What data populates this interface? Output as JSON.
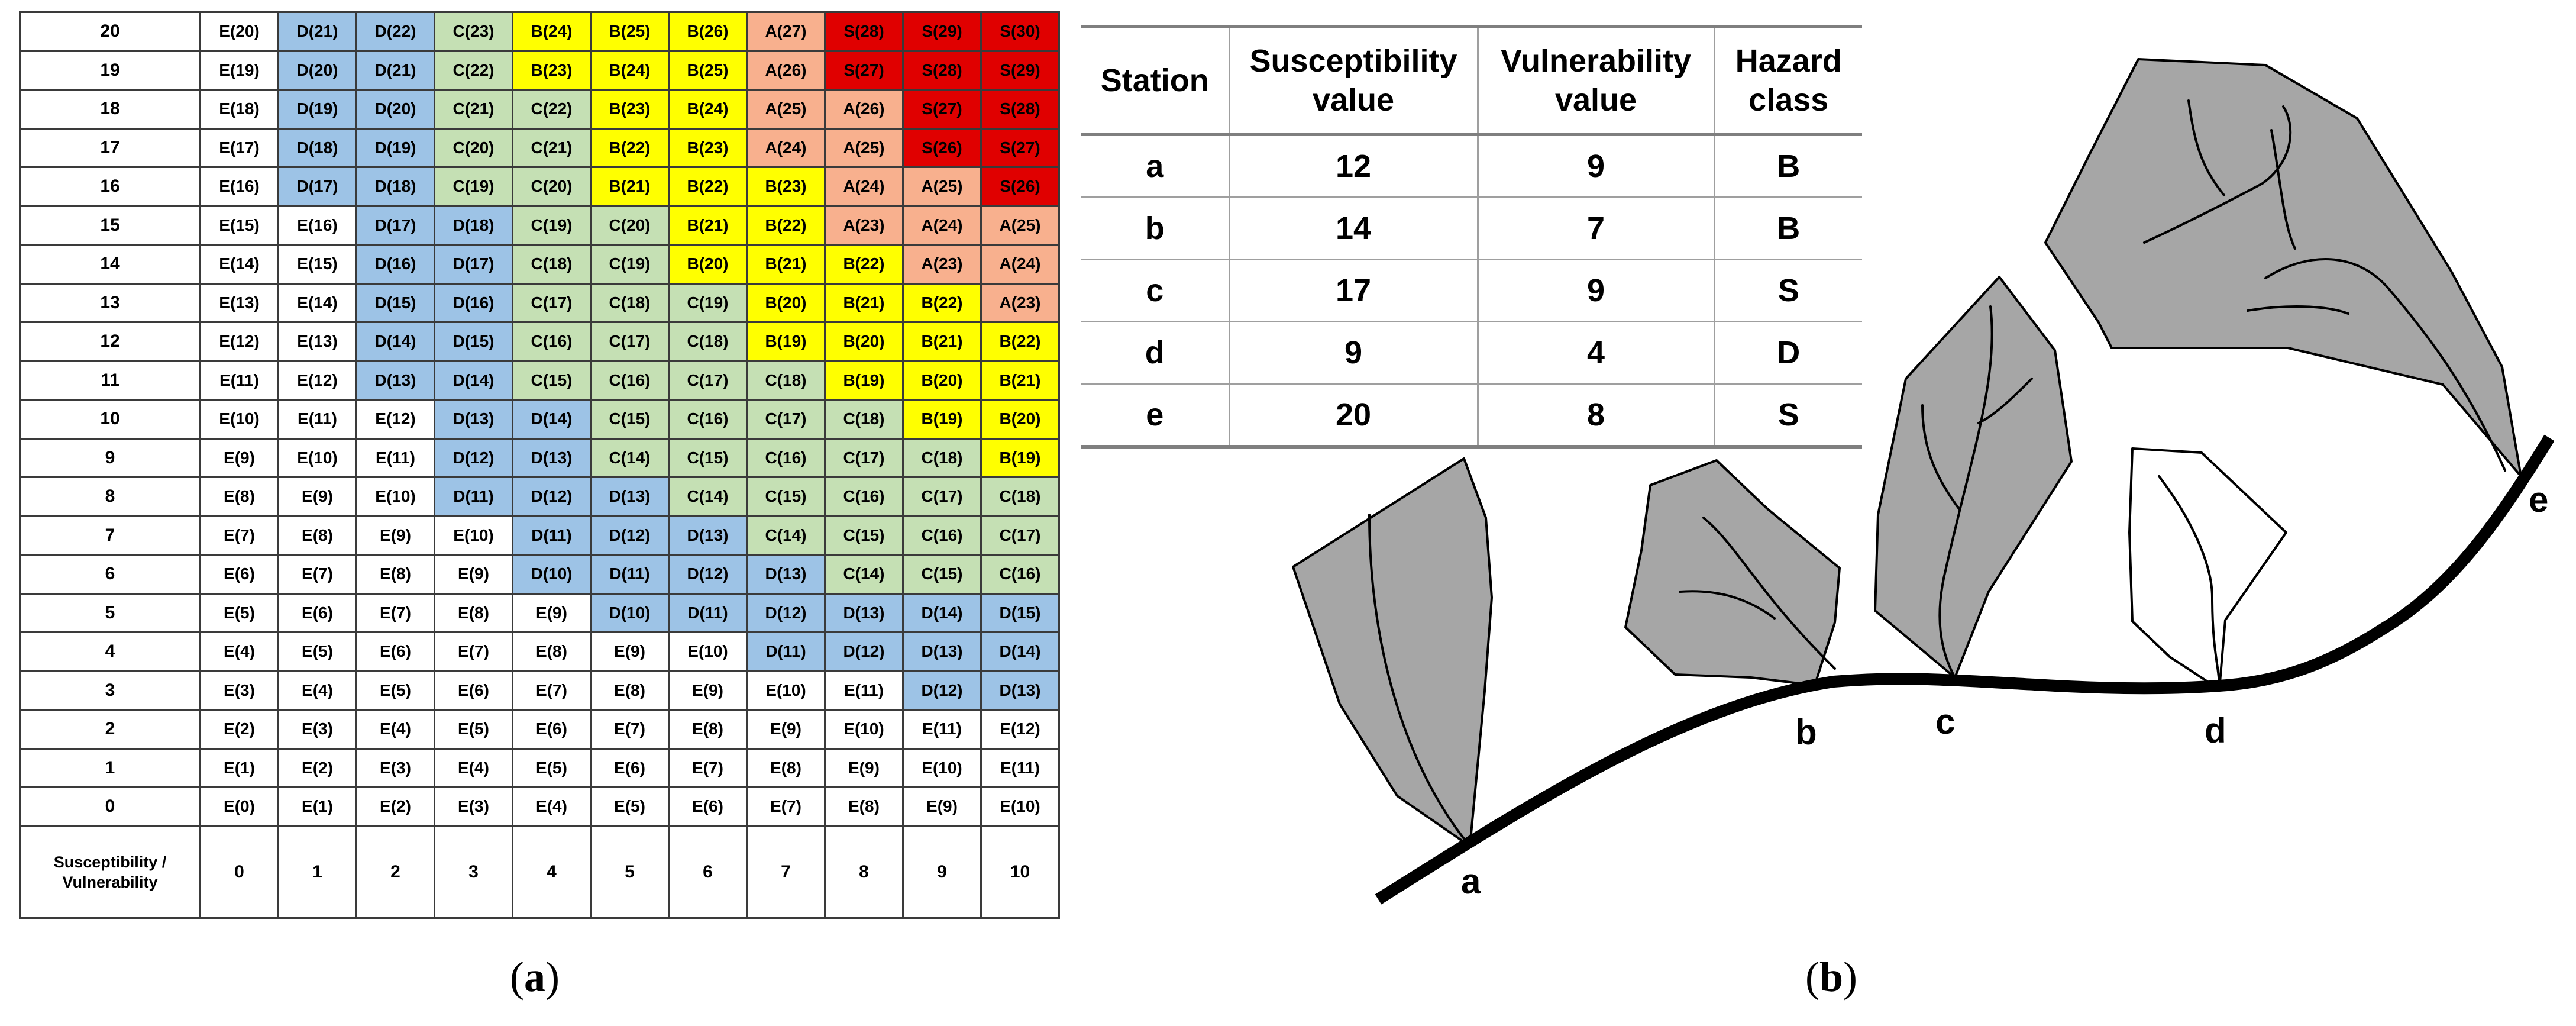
{
  "panel_a": {
    "caption_letter": "a",
    "axis_label": "Susceptibility / Vulnerability",
    "column_headers": [
      "0",
      "1",
      "2",
      "3",
      "4",
      "5",
      "6",
      "7",
      "8",
      "9",
      "10"
    ],
    "rows": [
      {
        "label": "20",
        "cells": [
          "E(20)",
          "D(21)",
          "D(22)",
          "C(23)",
          "B(24)",
          "B(25)",
          "B(26)",
          "A(27)",
          "S(28)",
          "S(29)",
          "S(30)"
        ]
      },
      {
        "label": "19",
        "cells": [
          "E(19)",
          "D(20)",
          "D(21)",
          "C(22)",
          "B(23)",
          "B(24)",
          "B(25)",
          "A(26)",
          "S(27)",
          "S(28)",
          "S(29)"
        ]
      },
      {
        "label": "18",
        "cells": [
          "E(18)",
          "D(19)",
          "D(20)",
          "C(21)",
          "C(22)",
          "B(23)",
          "B(24)",
          "A(25)",
          "A(26)",
          "S(27)",
          "S(28)"
        ]
      },
      {
        "label": "17",
        "cells": [
          "E(17)",
          "D(18)",
          "D(19)",
          "C(20)",
          "C(21)",
          "B(22)",
          "B(23)",
          "A(24)",
          "A(25)",
          "S(26)",
          "S(27)"
        ]
      },
      {
        "label": "16",
        "cells": [
          "E(16)",
          "D(17)",
          "D(18)",
          "C(19)",
          "C(20)",
          "B(21)",
          "B(22)",
          "B(23)",
          "A(24)",
          "A(25)",
          "S(26)"
        ]
      },
      {
        "label": "15",
        "cells": [
          "E(15)",
          "E(16)",
          "D(17)",
          "D(18)",
          "C(19)",
          "C(20)",
          "B(21)",
          "B(22)",
          "A(23)",
          "A(24)",
          "A(25)"
        ]
      },
      {
        "label": "14",
        "cells": [
          "E(14)",
          "E(15)",
          "D(16)",
          "D(17)",
          "C(18)",
          "C(19)",
          "B(20)",
          "B(21)",
          "B(22)",
          "A(23)",
          "A(24)"
        ]
      },
      {
        "label": "13",
        "cells": [
          "E(13)",
          "E(14)",
          "D(15)",
          "D(16)",
          "C(17)",
          "C(18)",
          "C(19)",
          "B(20)",
          "B(21)",
          "B(22)",
          "A(23)"
        ]
      },
      {
        "label": "12",
        "cells": [
          "E(12)",
          "E(13)",
          "D(14)",
          "D(15)",
          "C(16)",
          "C(17)",
          "C(18)",
          "B(19)",
          "B(20)",
          "B(21)",
          "B(22)"
        ]
      },
      {
        "label": "11",
        "cells": [
          "E(11)",
          "E(12)",
          "D(13)",
          "D(14)",
          "C(15)",
          "C(16)",
          "C(17)",
          "C(18)",
          "B(19)",
          "B(20)",
          "B(21)"
        ]
      },
      {
        "label": "10",
        "cells": [
          "E(10)",
          "E(11)",
          "E(12)",
          "D(13)",
          "D(14)",
          "C(15)",
          "C(16)",
          "C(17)",
          "C(18)",
          "B(19)",
          "B(20)"
        ]
      },
      {
        "label": "9",
        "cells": [
          "E(9)",
          "E(10)",
          "E(11)",
          "D(12)",
          "D(13)",
          "C(14)",
          "C(15)",
          "C(16)",
          "C(17)",
          "C(18)",
          "B(19)"
        ]
      },
      {
        "label": "8",
        "cells": [
          "E(8)",
          "E(9)",
          "E(10)",
          "D(11)",
          "D(12)",
          "D(13)",
          "C(14)",
          "C(15)",
          "C(16)",
          "C(17)",
          "C(18)"
        ]
      },
      {
        "label": "7",
        "cells": [
          "E(7)",
          "E(8)",
          "E(9)",
          "E(10)",
          "D(11)",
          "D(12)",
          "D(13)",
          "C(14)",
          "C(15)",
          "C(16)",
          "C(17)"
        ]
      },
      {
        "label": "6",
        "cells": [
          "E(6)",
          "E(7)",
          "E(8)",
          "E(9)",
          "D(10)",
          "D(11)",
          "D(12)",
          "D(13)",
          "C(14)",
          "C(15)",
          "C(16)"
        ]
      },
      {
        "label": "5",
        "cells": [
          "E(5)",
          "E(6)",
          "E(7)",
          "E(8)",
          "E(9)",
          "D(10)",
          "D(11)",
          "D(12)",
          "D(13)",
          "D(14)",
          "D(15)"
        ]
      },
      {
        "label": "4",
        "cells": [
          "E(4)",
          "E(5)",
          "E(6)",
          "E(7)",
          "E(8)",
          "E(9)",
          "E(10)",
          "D(11)",
          "D(12)",
          "D(13)",
          "D(14)"
        ]
      },
      {
        "label": "3",
        "cells": [
          "E(3)",
          "E(4)",
          "E(5)",
          "E(6)",
          "E(7)",
          "E(8)",
          "E(9)",
          "E(10)",
          "E(11)",
          "D(12)",
          "D(13)"
        ]
      },
      {
        "label": "2",
        "cells": [
          "E(2)",
          "E(3)",
          "E(4)",
          "E(5)",
          "E(6)",
          "E(7)",
          "E(8)",
          "E(9)",
          "E(10)",
          "E(11)",
          "E(12)"
        ]
      },
      {
        "label": "1",
        "cells": [
          "E(1)",
          "E(2)",
          "E(3)",
          "E(4)",
          "E(5)",
          "E(6)",
          "E(7)",
          "E(8)",
          "E(9)",
          "E(10)",
          "E(11)"
        ]
      },
      {
        "label": "0",
        "cells": [
          "E(0)",
          "E(1)",
          "E(2)",
          "E(3)",
          "E(4)",
          "E(5)",
          "E(6)",
          "E(7)",
          "E(8)",
          "E(9)",
          "E(10)"
        ]
      }
    ],
    "class_colors": {
      "E": "#ffffff",
      "D": "#9dc3e6",
      "C": "#c5e0b4",
      "B": "#ffff00",
      "A": "#f8b08e",
      "S": "#e00000"
    }
  },
  "panel_b": {
    "caption_letter": "b",
    "table": {
      "headers": [
        "Station",
        "Susceptibility value",
        "Vulnerability value",
        "Hazard class"
      ],
      "rows": [
        {
          "station": "a",
          "susceptibility": "12",
          "vulnerability": "9",
          "hazard": "B"
        },
        {
          "station": "b",
          "susceptibility": "14",
          "vulnerability": "7",
          "hazard": "B"
        },
        {
          "station": "c",
          "susceptibility": "17",
          "vulnerability": "9",
          "hazard": "S"
        },
        {
          "station": "d",
          "susceptibility": "9",
          "vulnerability": "4",
          "hazard": "D"
        },
        {
          "station": "e",
          "susceptibility": "20",
          "vulnerability": "8",
          "hazard": "S"
        }
      ]
    },
    "stations": [
      "a",
      "b",
      "c",
      "d",
      "e"
    ],
    "colors": {
      "basin_fill": "#a6a6a6",
      "basin_empty": "#ffffff",
      "stroke": "#000000"
    }
  }
}
